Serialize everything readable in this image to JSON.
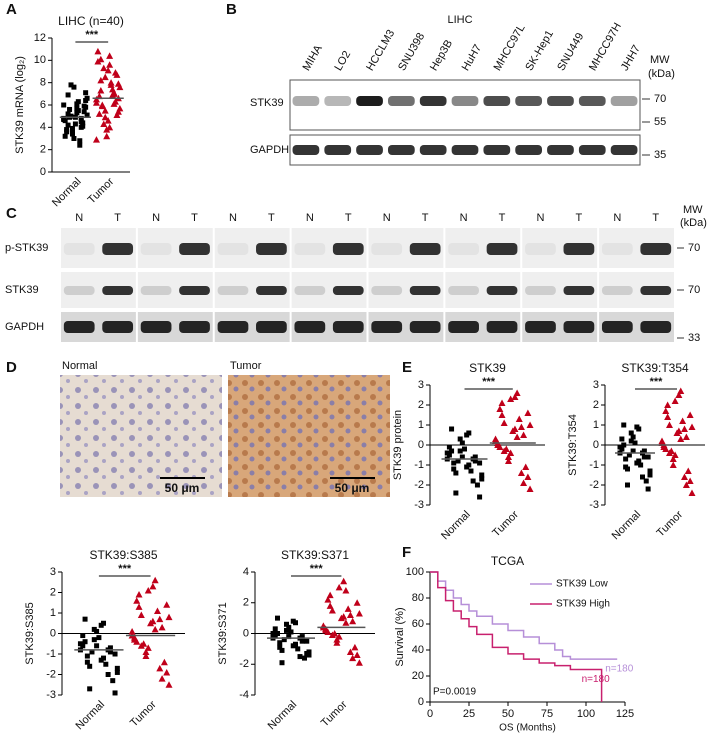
{
  "panel_labels": [
    "A",
    "B",
    "C",
    "D",
    "E",
    "F"
  ],
  "blot_b": {
    "title": "LIHC",
    "lanes": [
      "MIHA",
      "LO2",
      "HCCLM3",
      "SNU398",
      "Hep3B",
      "HuH7",
      "MHCC97L",
      "SK-Hep1",
      "SNU449",
      "MHCC97H",
      "JHH7"
    ],
    "rows": [
      "STK39",
      "GAPDH"
    ],
    "mw_title": "MW",
    "mw_unit": "(kDa)",
    "mw_markers": [
      70,
      55,
      35
    ]
  },
  "blot_c": {
    "lanes": [
      "N",
      "T",
      "N",
      "T",
      "N",
      "T",
      "N",
      "T",
      "N",
      "T",
      "N",
      "T",
      "N",
      "T",
      "N",
      "T"
    ],
    "rows": [
      "p-STK39",
      "STK39",
      "GAPDH"
    ],
    "mw_title": "MW",
    "mw_unit": "(kDa)",
    "mw_markers": [
      70,
      70,
      33
    ]
  },
  "ihc": {
    "normal": "Normal",
    "tumor": "Tumor",
    "scale_normal": "50 μm",
    "scale_tumor": "50 μm"
  },
  "chart_data": [
    {
      "type": "strip",
      "title": "LIHC (n=40)",
      "ylabel": "STK39 mRNA (log₂)",
      "annotation": "***",
      "zero_line": false,
      "ylim": [
        0,
        12
      ],
      "yticks": [
        0,
        2,
        4,
        6,
        8,
        10,
        12
      ],
      "series": [
        {
          "name": "Normal",
          "color": "#000000",
          "marker": "square",
          "mean": 4.9,
          "values": [
            4.8,
            5.2,
            3.9,
            6.1,
            4.5,
            5.8,
            3.2,
            4.9,
            7.6,
            5.5,
            4.1,
            6.6,
            3.6,
            5.0,
            4.3,
            2.8,
            5.9,
            4.7,
            6.9,
            3.4,
            5.3,
            4.0,
            7.1,
            4.6,
            5.6,
            3.0,
            6.3,
            4.4,
            5.1,
            3.8,
            7.8,
            4.9,
            2.4,
            5.4,
            6.0,
            4.2,
            3.5,
            5.7,
            4.8,
            6.4
          ]
        },
        {
          "name": "Tumor",
          "color": "#c0001a",
          "marker": "triangle",
          "mean": 6.6,
          "values": [
            6.5,
            8.2,
            4.9,
            9.6,
            7.1,
            5.4,
            10.8,
            6.0,
            3.2,
            7.8,
            8.9,
            5.7,
            6.8,
            4.3,
            9.1,
            7.4,
            5.1,
            6.2,
            10.1,
            8.5,
            4.0,
            7.0,
            6.6,
            9.9,
            5.9,
            3.8,
            8.0,
            6.3,
            7.6,
            5.2,
            9.3,
            4.6,
            6.9,
            8.7,
            2.9,
            7.3,
            5.5,
            10.4,
            6.1,
            7.9
          ]
        }
      ]
    },
    {
      "type": "strip",
      "title": "STK39",
      "ylabel": "STK39 protein",
      "annotation": "***",
      "zero_line": true,
      "ylim": [
        -3,
        3
      ],
      "yticks": [
        -3,
        -2,
        -1,
        0,
        1,
        2,
        3
      ],
      "series": [
        {
          "name": "Normal",
          "color": "#000000",
          "marker": "square",
          "mean": -0.7,
          "values": [
            -0.7,
            -1.2,
            -0.3,
            0.5,
            -1.8,
            -0.9,
            -0.5,
            -2.4,
            0.1,
            -1.0,
            -0.6,
            -1.5,
            0.8,
            -0.8,
            -0.2,
            -1.3,
            -2.0,
            -0.4,
            -0.9,
            0.3,
            -1.1,
            -0.7,
            -2.6,
            -0.1,
            -1.4,
            -0.6,
            0.6,
            -0.8,
            -1.7,
            -0.3
          ]
        },
        {
          "name": "Tumor",
          "color": "#c0001a",
          "marker": "triangle",
          "mean": 0.1,
          "values": [
            0.2,
            1.5,
            -0.8,
            2.4,
            0.9,
            -1.6,
            0.0,
            1.1,
            -0.4,
            2.6,
            0.5,
            -2.2,
            1.8,
            -0.2,
            0.7,
            1.3,
            -1.1,
            0.3,
            2.1,
            -0.6,
            0.8,
            -1.4,
            1.6,
            0.1,
            -0.3,
            2.3,
            0.4,
            -1.9,
            1.0,
            -0.1
          ]
        }
      ]
    },
    {
      "type": "strip",
      "title": "STK39:T354",
      "ylabel": "STK39:T354",
      "annotation": "***",
      "zero_line": true,
      "ylim": [
        -3,
        3
      ],
      "yticks": [
        -3,
        -2,
        -1,
        0,
        1,
        2,
        3
      ],
      "series": [
        {
          "name": "Normal",
          "color": "#000000",
          "marker": "square",
          "mean": -0.4,
          "values": [
            -0.4,
            -1.1,
            0.2,
            0.9,
            -1.6,
            -0.6,
            -0.2,
            -2.0,
            0.4,
            -0.8,
            -0.3,
            -1.3,
            1.0,
            -0.5,
            0.1,
            -1.0,
            -1.8,
            -0.1,
            -0.7,
            0.6,
            -0.9,
            -0.4,
            -2.2,
            0.3,
            -1.2,
            -0.3,
            0.8,
            -0.6,
            -1.5,
            0.0
          ]
        },
        {
          "name": "Tumor",
          "color": "#c0001a",
          "marker": "triangle",
          "mean": 0.0,
          "values": [
            0.1,
            1.4,
            -1.0,
            2.5,
            0.8,
            -1.8,
            -0.1,
            1.0,
            -0.5,
            2.7,
            0.4,
            -2.4,
            1.7,
            -0.3,
            0.6,
            1.2,
            -1.3,
            0.2,
            2.0,
            -0.7,
            0.7,
            -1.6,
            1.5,
            0.0,
            -0.4,
            2.2,
            0.3,
            -2.0,
            0.9,
            -0.2
          ]
        }
      ]
    },
    {
      "type": "strip",
      "title": "STK39:S385",
      "ylabel": "STK39:S385",
      "annotation": "***",
      "zero_line": true,
      "ylim": [
        -3,
        3
      ],
      "yticks": [
        -3,
        -2,
        -1,
        0,
        1,
        2,
        3
      ],
      "series": [
        {
          "name": "Normal",
          "color": "#000000",
          "marker": "square",
          "mean": -0.8,
          "values": [
            -0.8,
            -1.4,
            -0.3,
            0.4,
            -2.0,
            -1.0,
            -0.6,
            -2.7,
            0.1,
            -1.2,
            -0.7,
            -1.7,
            0.7,
            -0.9,
            -0.2,
            -1.5,
            -2.3,
            -0.5,
            -1.1,
            0.2,
            -1.3,
            -0.8,
            -2.9,
            -0.1,
            -1.6,
            -0.6,
            0.5,
            -0.9,
            -1.9,
            -0.4
          ]
        },
        {
          "name": "Tumor",
          "color": "#c0001a",
          "marker": "triangle",
          "mean": -0.1,
          "values": [
            -0.1,
            1.3,
            -1.1,
            2.3,
            0.7,
            -1.9,
            -0.3,
            0.9,
            -0.7,
            2.6,
            0.3,
            -2.5,
            1.6,
            -0.5,
            0.5,
            1.1,
            -1.4,
            0.1,
            1.9,
            -0.9,
            0.6,
            -1.7,
            1.4,
            -0.2,
            -0.6,
            2.1,
            0.2,
            -2.2,
            0.8,
            -0.4
          ]
        }
      ]
    },
    {
      "type": "strip",
      "title": "STK39:S371",
      "ylabel": "STK39:S371",
      "annotation": "***",
      "zero_line": true,
      "ylim": [
        -4,
        4
      ],
      "yticks": [
        -4,
        -2,
        0,
        2,
        4
      ],
      "series": [
        {
          "name": "Normal",
          "color": "#000000",
          "marker": "square",
          "mean": -0.3,
          "values": [
            -0.3,
            -0.9,
            0.2,
            0.8,
            -1.5,
            -0.5,
            -0.1,
            -1.9,
            0.4,
            -0.7,
            -0.2,
            -1.2,
            1.0,
            -0.4,
            0.1,
            -1.0,
            -1.6,
            0.0,
            -0.6,
            0.6,
            -0.8,
            -0.3,
            -1.3,
            0.3,
            -1.1,
            -0.2,
            0.7,
            -0.5,
            -1.4,
            0.0
          ]
        },
        {
          "name": "Tumor",
          "color": "#c0001a",
          "marker": "triangle",
          "mean": 0.4,
          "values": [
            0.4,
            1.8,
            -0.6,
            3.4,
            1.2,
            -1.4,
            0.2,
            1.5,
            -0.2,
            2.8,
            0.8,
            -1.9,
            2.2,
            0.0,
            1.0,
            1.6,
            -0.9,
            0.5,
            2.5,
            -0.4,
            1.1,
            -1.2,
            2.0,
            0.3,
            -0.1,
            3.0,
            0.7,
            -1.6,
            1.3,
            0.1
          ]
        }
      ]
    },
    {
      "type": "survival",
      "title": "TCGA",
      "xlabel": "OS (Months)",
      "ylabel": "Survival (%)",
      "annotation": "P=0.0019",
      "legend": "upper right",
      "xlim": [
        0,
        125
      ],
      "xticks": [
        0,
        25,
        50,
        75,
        100,
        125
      ],
      "ylim": [
        0,
        100
      ],
      "yticks": [
        0,
        20,
        40,
        60,
        80,
        100
      ],
      "series": [
        {
          "name": "STK39 Low",
          "color": "#b68fd8",
          "n_label": "n=180",
          "x": [
            0,
            5,
            10,
            15,
            20,
            25,
            30,
            40,
            50,
            60,
            70,
            80,
            85,
            90,
            100,
            120
          ],
          "values": [
            100,
            93,
            86,
            80,
            75,
            70,
            66,
            60,
            55,
            50,
            45,
            40,
            35,
            33,
            33,
            33
          ]
        },
        {
          "name": "STK39 High",
          "color": "#c8206e",
          "n_label": "n=180",
          "x": [
            0,
            5,
            10,
            15,
            20,
            25,
            30,
            40,
            50,
            60,
            70,
            80,
            90,
            100,
            110
          ],
          "values": [
            100,
            88,
            78,
            70,
            64,
            58,
            52,
            42,
            37,
            33,
            30,
            28,
            25,
            25,
            0
          ]
        }
      ]
    }
  ]
}
